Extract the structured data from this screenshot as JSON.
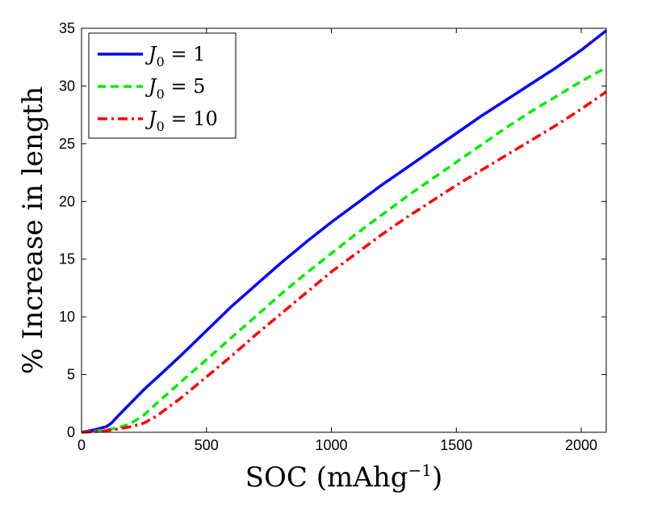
{
  "chart_data": {
    "type": "line",
    "title": "",
    "xlabel": "SOC (mAhg",
    "xlabel_sup": "−1",
    "xlabel_close": ")",
    "ylabel": "% Increase in length",
    "xlim": [
      0,
      2100
    ],
    "ylim": [
      0,
      35
    ],
    "xticks": [
      0,
      500,
      1000,
      1500,
      2000
    ],
    "yticks": [
      0,
      5,
      10,
      15,
      20,
      25,
      30,
      35
    ],
    "grid": false,
    "legend_position": "top-left",
    "series": [
      {
        "name": "J0 = 1",
        "label_main": "J",
        "label_sub": "0",
        "label_rest": " = 1",
        "color": "#0000ff",
        "style": "solid",
        "x": [
          0,
          50,
          100,
          120,
          150,
          200,
          250,
          300,
          400,
          500,
          600,
          700,
          800,
          900,
          1000,
          1100,
          1200,
          1300,
          1400,
          1500,
          1600,
          1700,
          1800,
          1900,
          2000,
          2100
        ],
        "y": [
          0,
          0.2,
          0.5,
          0.8,
          1.5,
          2.6,
          3.7,
          4.7,
          6.7,
          8.8,
          10.9,
          12.8,
          14.7,
          16.5,
          18.2,
          19.8,
          21.4,
          22.9,
          24.4,
          25.9,
          27.4,
          28.8,
          30.2,
          31.6,
          33.1,
          34.8
        ]
      },
      {
        "name": "J0 = 5",
        "label_main": "J",
        "label_sub": "0",
        "label_rest": " = 5",
        "color": "#00ee00",
        "style": "dashed",
        "x": [
          0,
          50,
          100,
          150,
          200,
          250,
          300,
          400,
          500,
          600,
          700,
          800,
          900,
          1000,
          1100,
          1200,
          1300,
          1400,
          1500,
          1600,
          1700,
          1800,
          1900,
          2000,
          2100
        ],
        "y": [
          0,
          0.1,
          0.2,
          0.4,
          0.8,
          1.5,
          2.5,
          4.4,
          6.3,
          8.2,
          10.1,
          12.0,
          13.8,
          15.5,
          17.2,
          18.8,
          20.4,
          21.9,
          23.4,
          24.9,
          26.4,
          27.8,
          29.1,
          30.4,
          31.6
        ]
      },
      {
        "name": "J0 = 10",
        "label_main": "J",
        "label_sub": "0",
        "label_rest": " = 10",
        "color": "#ff0000",
        "style": "dashdot",
        "x": [
          0,
          50,
          100,
          150,
          200,
          250,
          300,
          400,
          500,
          600,
          700,
          800,
          900,
          1000,
          1100,
          1200,
          1300,
          1400,
          1500,
          1600,
          1700,
          1800,
          1900,
          2000,
          2100
        ],
        "y": [
          0,
          0.05,
          0.15,
          0.3,
          0.5,
          0.8,
          1.4,
          3.0,
          4.8,
          6.6,
          8.5,
          10.3,
          12.1,
          13.9,
          15.5,
          17.1,
          18.6,
          20.0,
          21.4,
          22.7,
          24.0,
          25.3,
          26.6,
          28.0,
          29.5
        ]
      }
    ]
  }
}
